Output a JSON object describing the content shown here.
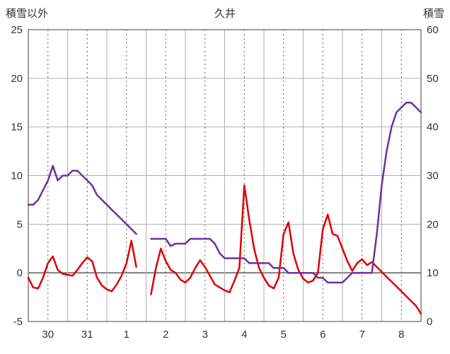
{
  "header": {
    "left_axis_title": "積雪以外",
    "chart_title": "久井",
    "right_axis_title": "積雪"
  },
  "chart_data": {
    "type": "line",
    "title": "久井",
    "grid": true,
    "legend": "none",
    "x_tick_labels": [
      "30",
      "31",
      "1",
      "2",
      "3",
      "4",
      "5",
      "6",
      "7",
      "8"
    ],
    "x_days": 10,
    "x_total_hours": 240,
    "x_step_hours": 3,
    "left_axis": {
      "label": "積雪以外",
      "min": -5,
      "max": 25,
      "ticks": [
        25,
        20,
        15,
        10,
        5,
        0,
        -5
      ]
    },
    "right_axis": {
      "label": "積雪",
      "min": 0,
      "max": 60,
      "ticks": [
        60,
        50,
        40,
        30,
        20,
        10,
        0
      ]
    },
    "colors": {
      "temperature_line": "#dd0000",
      "snow_line": "#7030a0",
      "gridline": "#b0b0b0",
      "zero_line": "#7f7f7f",
      "dashed_line": "#595959",
      "border": "#7f7f7f"
    },
    "series": [
      {
        "name": "積雪以外",
        "axis": "left",
        "color": "#dd0000",
        "values": [
          -0.5,
          -1.5,
          -1.6,
          -0.5,
          1.0,
          1.7,
          0.3,
          -0.1,
          -0.2,
          -0.3,
          0.3,
          1.0,
          1.6,
          1.2,
          -0.5,
          -1.3,
          -1.7,
          -1.9,
          -1.2,
          -0.3,
          1.0,
          3.3,
          0.6,
          null,
          null,
          -2.2,
          0.5,
          2.5,
          1.2,
          0.3,
          0.0,
          -0.7,
          -1.0,
          -0.5,
          0.5,
          1.3,
          0.6,
          -0.3,
          -1.2,
          -1.5,
          -1.8,
          -2.0,
          -0.8,
          0.5,
          9.0,
          5.5,
          2.5,
          0.5,
          -0.5,
          -1.3,
          -1.6,
          -0.5,
          4.0,
          5.2,
          2.0,
          0.3,
          -0.6,
          -1.0,
          -0.8,
          0.0,
          4.5,
          6.0,
          4.0,
          3.8,
          2.5,
          1.2,
          0.2,
          1.0,
          1.4,
          0.8,
          1.1,
          0.6,
          0.1,
          -0.4,
          -0.9,
          -1.4,
          -1.9,
          -2.4,
          -2.9,
          -3.4,
          -4.2
        ]
      },
      {
        "name": "積雪",
        "axis": "right",
        "color": "#7030a0",
        "values": [
          24,
          24,
          25,
          27,
          29,
          32,
          29,
          30,
          30,
          31,
          31,
          30,
          29,
          28,
          26,
          25,
          24,
          23,
          22,
          21,
          20,
          19,
          18,
          null,
          null,
          17,
          17,
          17,
          17,
          15.5,
          16,
          16,
          16,
          17,
          17,
          17,
          17,
          17,
          16,
          14,
          13,
          13,
          13,
          13,
          13,
          12,
          12,
          12,
          12,
          12,
          11,
          11,
          11,
          10,
          10,
          10,
          10,
          10,
          10,
          9,
          9,
          8,
          8,
          8,
          8,
          9,
          10,
          10,
          10,
          10,
          10,
          18,
          28,
          35,
          40,
          43,
          44,
          45,
          45,
          44,
          43
        ]
      }
    ]
  }
}
